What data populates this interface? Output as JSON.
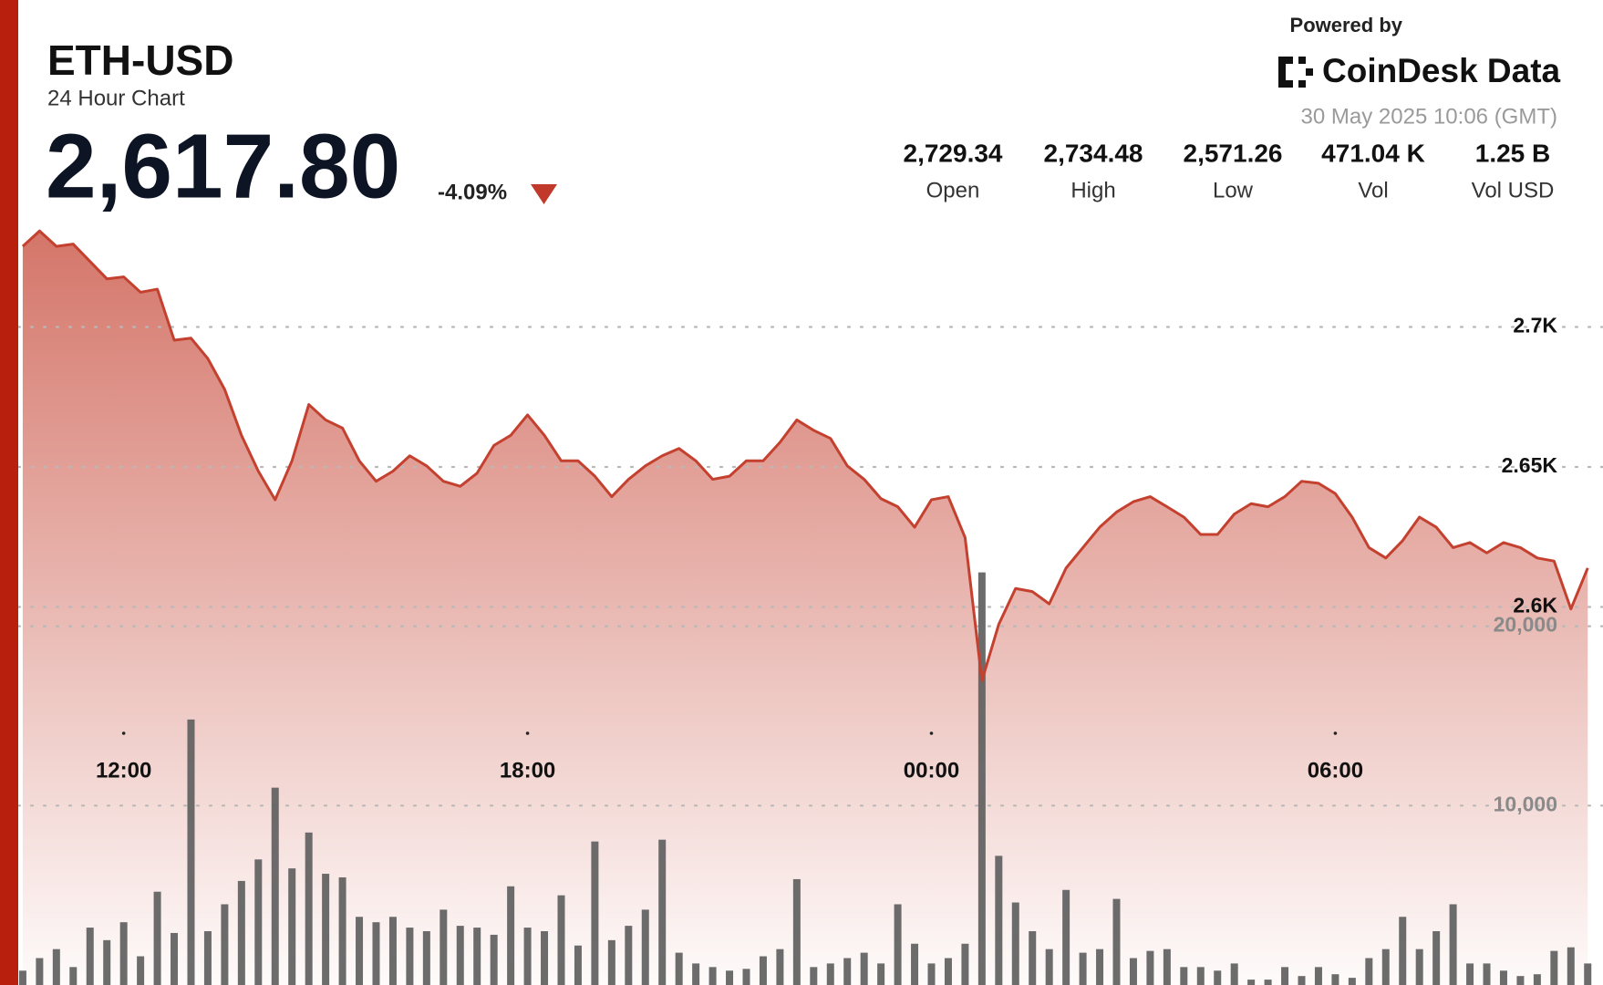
{
  "header": {
    "ticker": "ETH-USD",
    "subtitle": "24 Hour Chart",
    "price": "2,617.80",
    "change": "-4.09%",
    "powered_by": "Powered by",
    "brand": "CoinDesk Data",
    "timestamp": "30 May 2025 10:06 (GMT)"
  },
  "stats": [
    {
      "value": "2,729.34",
      "label": "Open"
    },
    {
      "value": "2,734.48",
      "label": "High"
    },
    {
      "value": "2,571.26",
      "label": "Low"
    },
    {
      "value": "471.04 K",
      "label": "Vol"
    },
    {
      "value": "1.25 B",
      "label": "Vol USD"
    }
  ],
  "chart_data": {
    "type": "line",
    "categories": [
      null,
      null,
      null,
      null,
      null,
      null,
      "12:00",
      null,
      null,
      null,
      null,
      null,
      null,
      null,
      null,
      null,
      null,
      null,
      null,
      null,
      null,
      null,
      null,
      null,
      null,
      null,
      null,
      null,
      null,
      null,
      "18:00",
      null,
      null,
      null,
      null,
      null,
      null,
      null,
      null,
      null,
      null,
      null,
      null,
      null,
      null,
      null,
      null,
      null,
      null,
      null,
      null,
      null,
      null,
      null,
      "00:00",
      null,
      null,
      null,
      null,
      null,
      null,
      null,
      null,
      null,
      null,
      null,
      null,
      null,
      null,
      null,
      null,
      null,
      null,
      null,
      null,
      null,
      null,
      null,
      "06:00",
      null,
      null,
      null,
      null,
      null,
      null,
      null,
      null,
      null,
      null,
      null,
      null,
      null,
      null,
      null
    ],
    "series": [
      {
        "name": "ETH-USD",
        "color": "#c4402f",
        "values": [
          2728.8,
          2734.3,
          2728.8,
          2729.6,
          2723.4,
          2717.2,
          2717.9,
          2712.4,
          2713.5,
          2695.3,
          2696.0,
          2688.7,
          2677.7,
          2661.3,
          2648.5,
          2638.3,
          2652.2,
          2672.3,
          2666.8,
          2663.9,
          2652.2,
          2644.9,
          2648.5,
          2654.0,
          2650.4,
          2644.9,
          2643.1,
          2647.8,
          2657.7,
          2661.3,
          2668.6,
          2661.3,
          2652.2,
          2652.2,
          2646.7,
          2639.4,
          2645.6,
          2650.4,
          2654.0,
          2656.6,
          2652.2,
          2645.6,
          2646.7,
          2652.2,
          2652.2,
          2658.8,
          2666.8,
          2663.1,
          2660.2,
          2650.4,
          2645.6,
          2638.7,
          2635.8,
          2628.5,
          2638.3,
          2639.4,
          2624.8,
          2573.7,
          2593.8,
          2606.6,
          2605.5,
          2601.1,
          2613.9,
          2621.2,
          2628.5,
          2633.9,
          2637.6,
          2639.4,
          2635.8,
          2632.1,
          2625.9,
          2625.9,
          2633.2,
          2636.9,
          2635.8,
          2639.4,
          2644.9,
          2644.2,
          2640.5,
          2632.1,
          2621.2,
          2617.5,
          2623.7,
          2632.1,
          2628.5,
          2621.2,
          2623.0,
          2619.3,
          2623.0,
          2621.2,
          2617.5,
          2616.4,
          2599.3,
          2613.9
        ]
      },
      {
        "name": "Vol",
        "type": "bar",
        "axis": "y2",
        "color": "#5f5f5f",
        "values": [
          800,
          1500,
          2000,
          1000,
          3200,
          2500,
          3500,
          1600,
          5200,
          2900,
          14800,
          3000,
          4500,
          5800,
          7000,
          11000,
          6500,
          8500,
          6200,
          6000,
          3800,
          3500,
          3800,
          3200,
          3000,
          4200,
          3300,
          3200,
          2800,
          5500,
          3200,
          3000,
          5000,
          2200,
          8000,
          2500,
          3300,
          4200,
          8100,
          1800,
          1200,
          1000,
          800,
          900,
          1600,
          2000,
          5900,
          1000,
          1200,
          1500,
          1800,
          1200,
          4500,
          2300,
          1200,
          1500,
          2300,
          23000,
          7200,
          4600,
          3000,
          2000,
          5300,
          1800,
          2000,
          4800,
          1500,
          1900,
          2000,
          1000,
          1000,
          800,
          1200,
          300,
          300,
          1000,
          500,
          1000,
          600,
          400,
          1500,
          2000,
          3800,
          2000,
          3000,
          4500,
          1200,
          1200,
          800,
          500,
          600,
          1900,
          2100,
          1200
        ]
      }
    ],
    "ylim": [
      2465,
      2736
    ],
    "yticks": [
      {
        "value": 2600,
        "label": "2.6K"
      },
      {
        "value": 2650,
        "label": "2.65K"
      },
      {
        "value": 2700,
        "label": "2.7K"
      }
    ],
    "y2lim": [
      0,
      42300
    ],
    "y2ticks": [
      {
        "value": 10000,
        "label": "10,000"
      },
      {
        "value": 20000,
        "label": "20,000"
      }
    ],
    "grid": true
  }
}
